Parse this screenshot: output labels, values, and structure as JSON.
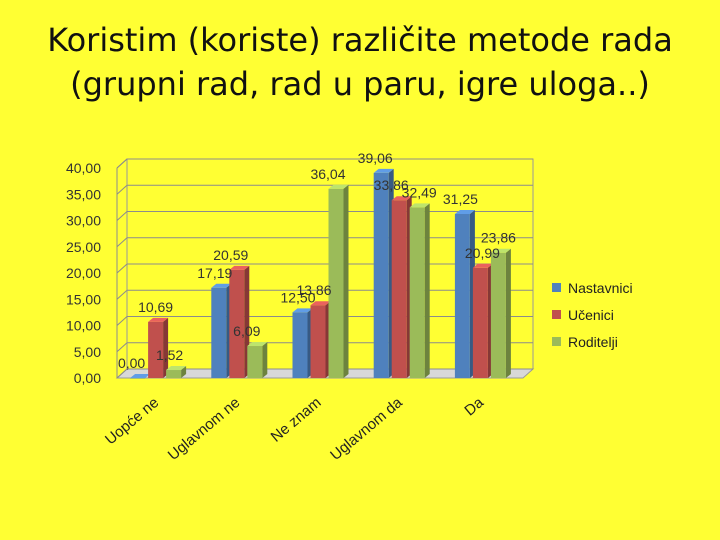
{
  "title_lines": [
    "Koristim (koriste) različite metode rada",
    "(grupni rad, rad u paru, igre uloga..)"
  ],
  "chart_data": {
    "type": "bar",
    "title": "Koristim (koriste) različite metode rada (grupni rad, rad u paru, igre uloga..)",
    "categories": [
      "Uopće ne",
      "Uglavnom ne",
      "Ne znam",
      "Uglavnom da",
      "Da"
    ],
    "series": [
      {
        "name": "Nastavnici",
        "values": [
          0.0,
          17.19,
          12.5,
          39.06,
          31.25
        ],
        "labels": [
          "0,00",
          "17,19",
          "12,50",
          "39,06",
          "31,25"
        ],
        "color": "#4f81bd"
      },
      {
        "name": "Učenici",
        "values": [
          10.69,
          20.59,
          13.86,
          33.86,
          20.99
        ],
        "labels": [
          "10,69",
          "20,59",
          "13,86",
          "33,86",
          "20,99"
        ],
        "color": "#c0504d"
      },
      {
        "name": "Roditelji",
        "values": [
          1.52,
          6.09,
          36.04,
          32.49,
          23.86
        ],
        "labels": [
          "1,52",
          "6,09",
          "36,04",
          "32,49",
          "23,86"
        ],
        "color": "#9bbb59"
      }
    ],
    "ylim": [
      0,
      40
    ],
    "yticks": [
      0,
      5,
      10,
      15,
      20,
      25,
      30,
      35,
      40
    ],
    "ytick_labels": [
      "0,00",
      "5,00",
      "10,00",
      "15,00",
      "20,00",
      "25,00",
      "30,00",
      "35,00",
      "40,00"
    ],
    "grid": true,
    "legend": "right",
    "style": "3d-column"
  }
}
